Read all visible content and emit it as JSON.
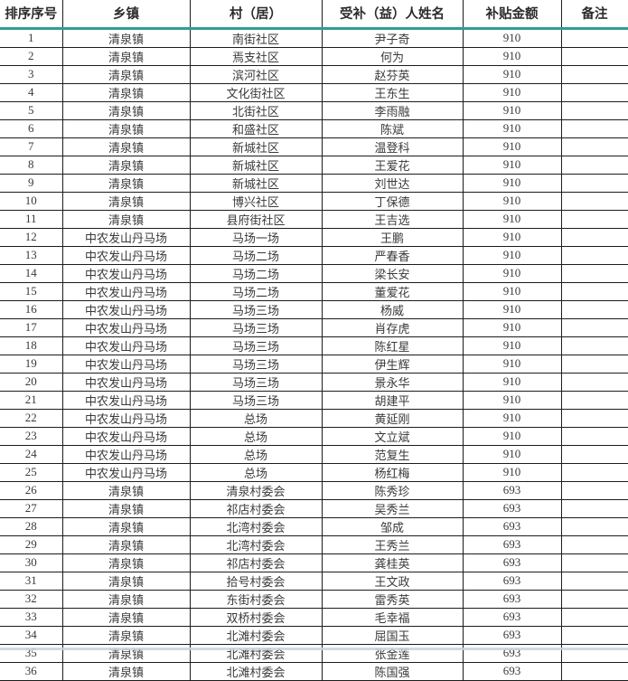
{
  "colors": {
    "header_underline": "#2f9e96",
    "grid_line": "#1c1c1c",
    "text": "#3a3a3a",
    "background": "#ffffff",
    "bottom_edge_artifact": "#c9d2da"
  },
  "table": {
    "headers": [
      "排序序号",
      "乡镇",
      "村（居）",
      "受补（益）人姓名",
      "补贴金额",
      "备注"
    ],
    "rows": [
      [
        "1",
        "清泉镇",
        "南街社区",
        "尹子奇",
        "910",
        ""
      ],
      [
        "2",
        "清泉镇",
        "焉支社区",
        "何为",
        "910",
        ""
      ],
      [
        "3",
        "清泉镇",
        "滨河社区",
        "赵芬英",
        "910",
        ""
      ],
      [
        "4",
        "清泉镇",
        "文化街社区",
        "王东生",
        "910",
        ""
      ],
      [
        "5",
        "清泉镇",
        "北街社区",
        "李雨融",
        "910",
        ""
      ],
      [
        "6",
        "清泉镇",
        "和盛社区",
        "陈斌",
        "910",
        ""
      ],
      [
        "7",
        "清泉镇",
        "新城社区",
        "温登科",
        "910",
        ""
      ],
      [
        "8",
        "清泉镇",
        "新城社区",
        "王爱花",
        "910",
        ""
      ],
      [
        "9",
        "清泉镇",
        "新城社区",
        "刘世达",
        "910",
        ""
      ],
      [
        "10",
        "清泉镇",
        "博兴社区",
        "丁保德",
        "910",
        ""
      ],
      [
        "11",
        "清泉镇",
        "县府街社区",
        "王吉选",
        "910",
        ""
      ],
      [
        "12",
        "中农发山丹马场",
        "马场一场",
        "王鹏",
        "910",
        ""
      ],
      [
        "13",
        "中农发山丹马场",
        "马场二场",
        "严春香",
        "910",
        ""
      ],
      [
        "14",
        "中农发山丹马场",
        "马场二场",
        "梁长安",
        "910",
        ""
      ],
      [
        "15",
        "中农发山丹马场",
        "马场二场",
        "董爱花",
        "910",
        ""
      ],
      [
        "16",
        "中农发山丹马场",
        "马场三场",
        "杨威",
        "910",
        ""
      ],
      [
        "17",
        "中农发山丹马场",
        "马场三场",
        "肖存虎",
        "910",
        ""
      ],
      [
        "18",
        "中农发山丹马场",
        "马场三场",
        "陈红星",
        "910",
        ""
      ],
      [
        "19",
        "中农发山丹马场",
        "马场三场",
        "伊生辉",
        "910",
        ""
      ],
      [
        "20",
        "中农发山丹马场",
        "马场三场",
        "景永华",
        "910",
        ""
      ],
      [
        "21",
        "中农发山丹马场",
        "马场三场",
        "胡建平",
        "910",
        ""
      ],
      [
        "22",
        "中农发山丹马场",
        "总场",
        "黄延刚",
        "910",
        ""
      ],
      [
        "23",
        "中农发山丹马场",
        "总场",
        "文立斌",
        "910",
        ""
      ],
      [
        "24",
        "中农发山丹马场",
        "总场",
        "范复生",
        "910",
        ""
      ],
      [
        "25",
        "中农发山丹马场",
        "总场",
        "杨红梅",
        "910",
        ""
      ],
      [
        "26",
        "清泉镇",
        "清泉村委会",
        "陈秀珍",
        "693",
        ""
      ],
      [
        "27",
        "清泉镇",
        "祁店村委会",
        "吴秀兰",
        "693",
        ""
      ],
      [
        "28",
        "清泉镇",
        "北湾村委会",
        "邹成",
        "693",
        ""
      ],
      [
        "29",
        "清泉镇",
        "北湾村委会",
        "王秀兰",
        "693",
        ""
      ],
      [
        "30",
        "清泉镇",
        "祁店村委会",
        "龚桂英",
        "693",
        ""
      ],
      [
        "31",
        "清泉镇",
        "拾号村委会",
        "王文政",
        "693",
        ""
      ],
      [
        "32",
        "清泉镇",
        "东街村委会",
        "雷秀英",
        "693",
        ""
      ],
      [
        "33",
        "清泉镇",
        "双桥村委会",
        "毛幸福",
        "693",
        ""
      ],
      [
        "34",
        "清泉镇",
        "北滩村委会",
        "屈国玉",
        "693",
        ""
      ],
      [
        "35",
        "清泉镇",
        "北滩村委会",
        "张金莲",
        "693",
        ""
      ],
      [
        "36",
        "清泉镇",
        "北滩村委会",
        "陈国强",
        "693",
        ""
      ]
    ]
  }
}
